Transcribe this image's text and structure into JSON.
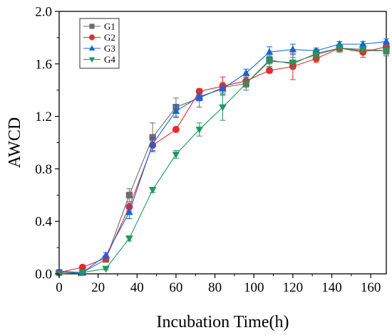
{
  "chart_data": {
    "type": "line",
    "title": "",
    "xlabel": "Incubation Time(h)",
    "ylabel": "AWCD",
    "xlim": [
      0,
      168
    ],
    "ylim": [
      0,
      2.0
    ],
    "xticks": [
      0,
      20,
      40,
      60,
      80,
      100,
      120,
      140,
      160
    ],
    "yticks": [
      0.0,
      0.4,
      0.8,
      1.2,
      1.6,
      2.0
    ],
    "x_tick_labels": [
      "0",
      "20",
      "40",
      "60",
      "80",
      "100",
      "120",
      "140",
      "160"
    ],
    "y_tick_labels": [
      "0.0",
      "0.4",
      "0.8",
      "1.2",
      "1.6",
      "2.0"
    ],
    "grid": false,
    "legend_position": "top-left",
    "x": [
      0,
      12,
      24,
      36,
      48,
      60,
      72,
      84,
      96,
      108,
      120,
      132,
      144,
      156,
      168
    ],
    "series": [
      {
        "name": "G1",
        "marker": "square",
        "color": "#6d6d6d",
        "values": [
          0.01,
          0.01,
          0.11,
          0.6,
          1.04,
          1.27,
          1.34,
          1.42,
          1.45,
          1.63,
          1.6,
          1.68,
          1.72,
          1.7,
          1.7
        ],
        "errors": [
          0.0,
          0.0,
          0.02,
          0.05,
          0.11,
          0.07,
          0.07,
          0.04,
          0.03,
          0.03,
          0.03,
          0.03,
          0.03,
          0.02,
          0.03
        ]
      },
      {
        "name": "G2",
        "marker": "circle",
        "color": "#e8292e",
        "values": [
          0.01,
          0.05,
          0.12,
          0.51,
          0.98,
          1.1,
          1.39,
          1.43,
          1.47,
          1.55,
          1.58,
          1.64,
          1.72,
          1.69,
          1.73
        ],
        "errors": [
          0.0,
          0.0,
          0.02,
          0.03,
          0.05,
          0.0,
          0.02,
          0.07,
          0.04,
          0.02,
          0.1,
          0.03,
          0.02,
          0.04,
          0.03
        ]
      },
      {
        "name": "G3",
        "marker": "triangle-up",
        "color": "#1565d8",
        "values": [
          0.02,
          0.01,
          0.14,
          0.47,
          0.99,
          1.24,
          1.35,
          1.41,
          1.53,
          1.69,
          1.71,
          1.7,
          1.75,
          1.75,
          1.77
        ],
        "errors": [
          0.0,
          0.0,
          0.02,
          0.05,
          0.05,
          0.05,
          0.03,
          0.04,
          0.03,
          0.04,
          0.04,
          0.02,
          0.02,
          0.02,
          0.02
        ]
      },
      {
        "name": "G4",
        "marker": "triangle-down",
        "color": "#1e9a5c",
        "values": [
          0.0,
          0.01,
          0.04,
          0.27,
          0.64,
          0.91,
          1.1,
          1.27,
          1.45,
          1.62,
          1.61,
          1.67,
          1.72,
          1.71,
          1.7
        ],
        "errors": [
          0.0,
          0.0,
          0.01,
          0.02,
          0.02,
          0.03,
          0.05,
          0.1,
          0.05,
          0.04,
          0.04,
          0.03,
          0.03,
          0.02,
          0.04
        ]
      }
    ]
  }
}
